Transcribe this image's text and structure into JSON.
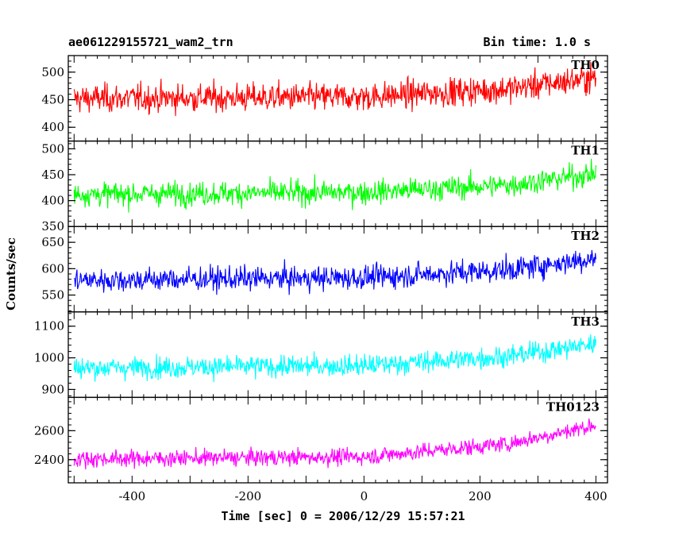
{
  "header": {
    "title": "ae061229155721_wam2_trn",
    "bin_time": "Bin time: 1.0 s"
  },
  "chart_data": {
    "type": "line",
    "xlabel": "Time [sec] 0 = 2006/12/29 15:57:21",
    "ylabel": "Counts/sec",
    "xlim": [
      -510,
      420
    ],
    "x_ticks": [
      -400,
      -200,
      0,
      200,
      400
    ],
    "x_range": [
      -500,
      400
    ],
    "bin_time_s": 1.0,
    "panels": [
      {
        "name": "TH0",
        "color": "#ff0000",
        "ylim": [
          375,
          530
        ],
        "ticks": [
          400,
          450,
          500
        ],
        "trend": [
          [
            -500,
            452
          ],
          [
            0,
            455
          ],
          [
            250,
            470
          ],
          [
            400,
            490
          ]
        ],
        "noise": 36
      },
      {
        "name": "TH1",
        "color": "#00ff00",
        "ylim": [
          350,
          515
        ],
        "ticks": [
          350,
          400,
          450,
          500
        ],
        "trend": [
          [
            -500,
            412
          ],
          [
            0,
            416
          ],
          [
            250,
            430
          ],
          [
            400,
            452
          ]
        ],
        "noise": 32
      },
      {
        "name": "TH2",
        "color": "#0000ff",
        "ylim": [
          518,
          680
        ],
        "ticks": [
          550,
          600,
          650
        ],
        "trend": [
          [
            -500,
            578
          ],
          [
            0,
            583
          ],
          [
            250,
            598
          ],
          [
            400,
            620
          ]
        ],
        "noise": 32
      },
      {
        "name": "TH3",
        "color": "#00ffff",
        "ylim": [
          875,
          1145
        ],
        "ticks": [
          900,
          1000,
          1100
        ],
        "trend": [
          [
            -500,
            968
          ],
          [
            0,
            975
          ],
          [
            250,
            1005
          ],
          [
            400,
            1045
          ]
        ],
        "noise": 48
      },
      {
        "name": "TH0123",
        "color": "#ff00ff",
        "ylim": [
          2240,
          2830
        ],
        "ticks": [
          2400,
          2600
        ],
        "trend": [
          [
            -500,
            2405
          ],
          [
            0,
            2420
          ],
          [
            250,
            2510
          ],
          [
            400,
            2640
          ]
        ],
        "noise": 80
      }
    ]
  }
}
